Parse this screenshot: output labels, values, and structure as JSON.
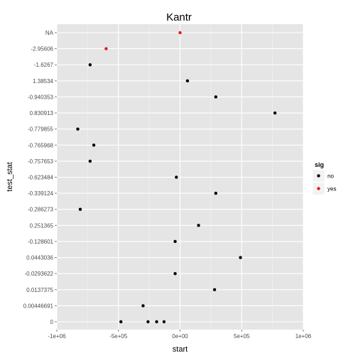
{
  "chart_data": {
    "type": "scatter",
    "title": "Kantr",
    "xlabel": "start",
    "ylabel": "test_stat",
    "xlim": [
      -1000000,
      1000000
    ],
    "x_ticks": [
      {
        "value": -1000000,
        "label": "-1e+06"
      },
      {
        "value": -500000,
        "label": "-5e+05"
      },
      {
        "value": 0,
        "label": "0e+00"
      },
      {
        "value": 500000,
        "label": "5e+05"
      },
      {
        "value": 1000000,
        "label": "1e+06"
      }
    ],
    "categories": [
      "0",
      "0.00446691",
      "0.0137375",
      "-0.0293622",
      "0.0443036",
      "-0.128601",
      "0.251365",
      "-0.286273",
      "-0.339124",
      "-0.623484",
      "-0.757653",
      "-0.765968",
      "-0.779855",
      "0.830913",
      "-0.940353",
      "1.38534",
      "-1.6267",
      "-2.95606",
      "NA"
    ],
    "grid": true,
    "legend": {
      "title": "sig",
      "placement": "right",
      "entries": [
        {
          "label": "no",
          "color": "#000000"
        },
        {
          "label": "yes",
          "color": "#e41a1c"
        }
      ]
    },
    "points": [
      {
        "x": 0,
        "y": "NA",
        "sig": "yes"
      },
      {
        "x": -600000,
        "y": "-2.95606",
        "sig": "yes"
      },
      {
        "x": -730000,
        "y": "-1.6267",
        "sig": "no"
      },
      {
        "x": 60000,
        "y": "1.38534",
        "sig": "no"
      },
      {
        "x": 290000,
        "y": "-0.940353",
        "sig": "no"
      },
      {
        "x": 770000,
        "y": "0.830913",
        "sig": "no"
      },
      {
        "x": -830000,
        "y": "-0.779855",
        "sig": "no"
      },
      {
        "x": -700000,
        "y": "-0.765968",
        "sig": "no"
      },
      {
        "x": -730000,
        "y": "-0.757653",
        "sig": "no"
      },
      {
        "x": -30000,
        "y": "-0.623484",
        "sig": "no"
      },
      {
        "x": 290000,
        "y": "-0.339124",
        "sig": "no"
      },
      {
        "x": -810000,
        "y": "-0.286273",
        "sig": "no"
      },
      {
        "x": 150000,
        "y": "0.251365",
        "sig": "no"
      },
      {
        "x": -40000,
        "y": "-0.128601",
        "sig": "no"
      },
      {
        "x": 490000,
        "y": "0.0443036",
        "sig": "no"
      },
      {
        "x": -40000,
        "y": "-0.0293622",
        "sig": "no"
      },
      {
        "x": 280000,
        "y": "0.0137375",
        "sig": "no"
      },
      {
        "x": -300000,
        "y": "0.00446691",
        "sig": "no"
      },
      {
        "x": -480000,
        "y": "0",
        "sig": "no"
      },
      {
        "x": -260000,
        "y": "0",
        "sig": "no"
      },
      {
        "x": -190000,
        "y": "0",
        "sig": "no"
      },
      {
        "x": -130000,
        "y": "0",
        "sig": "no"
      }
    ]
  }
}
